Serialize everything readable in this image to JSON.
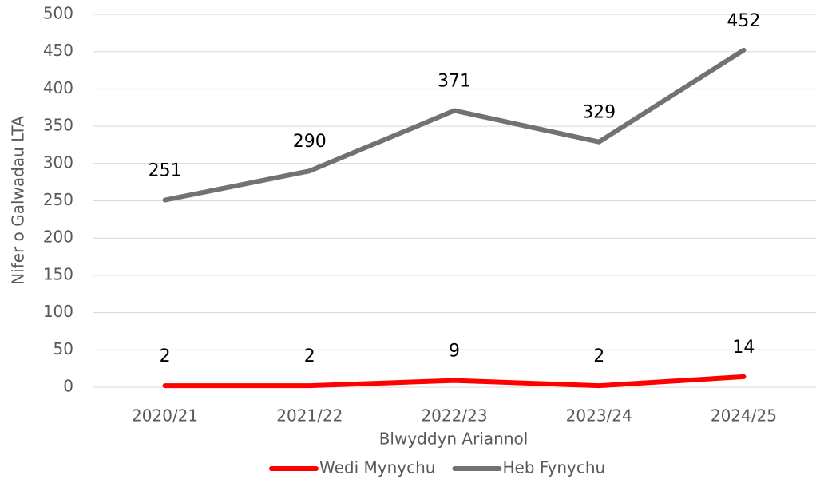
{
  "chart_data": {
    "type": "line",
    "categories": [
      "2020/21",
      "2021/22",
      "2022/23",
      "2023/24",
      "2024/25"
    ],
    "series": [
      {
        "name": "Wedi Mynychu",
        "color": "#ff0000",
        "values": [
          2,
          2,
          9,
          2,
          14
        ]
      },
      {
        "name": "Heb Fynychu",
        "color": "#767171",
        "values": [
          251,
          290,
          371,
          329,
          452
        ]
      }
    ],
    "ylim": [
      0,
      500
    ],
    "yticks": [
      0,
      50,
      100,
      150,
      200,
      250,
      300,
      350,
      400,
      450,
      500
    ],
    "grid": true,
    "legend": "bottom",
    "ylabel": "Nifer o Galwadau LTA",
    "xlabel": "Blwyddyn Ariannol"
  }
}
